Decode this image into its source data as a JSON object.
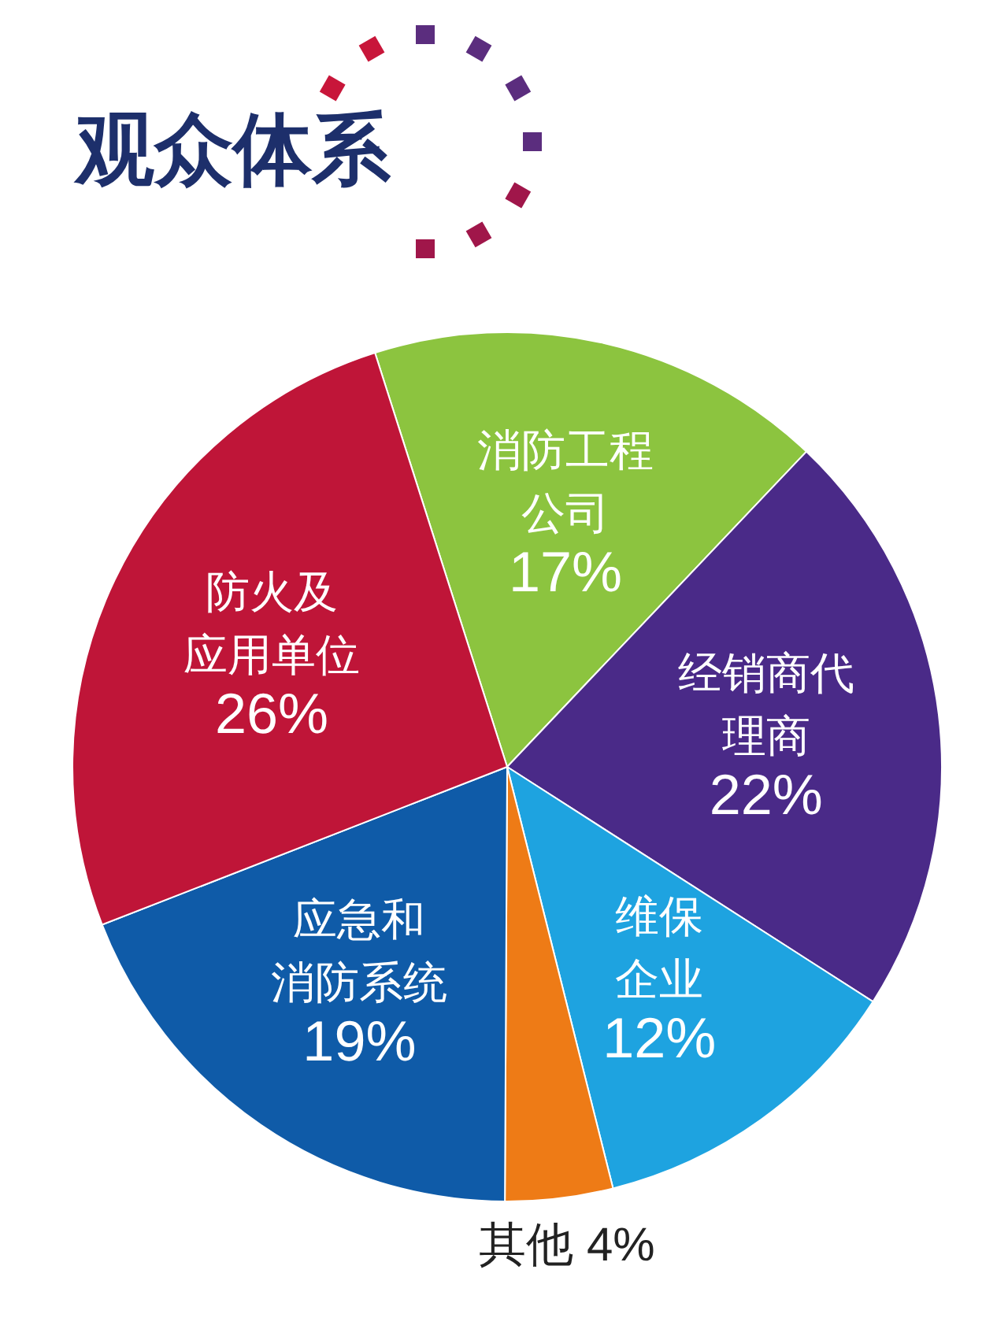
{
  "chart_data": {
    "type": "pie",
    "title": "观众体系",
    "categories": [
      "消防工程公司",
      "经销商代理商",
      "维保企业",
      "其他",
      "应急和消防系统",
      "防火及应用单位"
    ],
    "values": [
      17,
      22,
      12,
      4,
      19,
      26
    ],
    "value_labels": [
      "17%",
      "22%",
      "12%",
      "4%",
      "19%",
      "26%"
    ],
    "colors": [
      "#8cc43f",
      "#4a2a88",
      "#1ea3e0",
      "#ee7b16",
      "#0f5ba8",
      "#bf1538"
    ]
  }
}
